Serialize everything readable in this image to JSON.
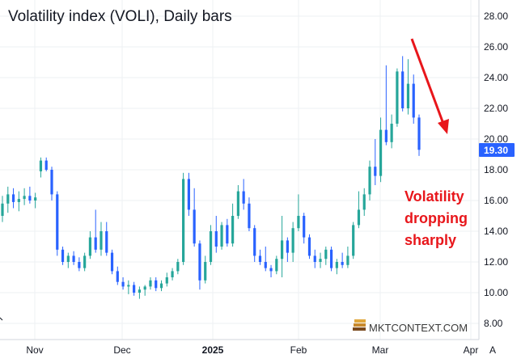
{
  "chart_data": {
    "type": "candlestick",
    "title": "Volatility index (VOLI), Daily bars",
    "y_axis": {
      "position": "right",
      "ylim": [
        7.0,
        29.0
      ],
      "ticks": [
        "28.00",
        "26.00",
        "24.00",
        "22.00",
        "20.00",
        "18.00",
        "16.00",
        "14.00",
        "12.00",
        "10.00",
        "8.00"
      ],
      "tick_values": [
        28,
        26,
        24,
        22,
        20,
        18,
        16,
        14,
        12,
        10,
        8
      ]
    },
    "x_axis": {
      "labels": [
        {
          "text": "Nov",
          "bold": false
        },
        {
          "text": "Dec",
          "bold": false
        },
        {
          "text": "2025",
          "bold": true
        },
        {
          "text": "Feb",
          "bold": false
        },
        {
          "text": "Mar",
          "bold": false
        },
        {
          "text": "Apr",
          "bold": false
        }
      ],
      "corner_label": "A"
    },
    "grid": true,
    "last_price": "19.30",
    "last_price_value": 19.3,
    "colors": {
      "up": "#26a69a",
      "down": "#2962ff",
      "arrow": "#e8161b",
      "last_price_bg": "#2962ff"
    },
    "candles": [
      [
        15.0,
        16.3,
        14.6,
        15.8
      ],
      [
        15.8,
        16.9,
        15.2,
        16.4
      ],
      [
        16.4,
        16.8,
        15.5,
        15.9
      ],
      [
        15.9,
        16.6,
        15.3,
        16.1
      ],
      [
        16.1,
        16.8,
        15.7,
        16.3
      ],
      [
        16.3,
        16.9,
        15.8,
        16.0
      ],
      [
        16.0,
        16.5,
        15.5,
        16.2
      ],
      [
        17.9,
        18.8,
        17.5,
        18.6
      ],
      [
        18.6,
        18.8,
        17.9,
        18.0
      ],
      [
        18.0,
        18.2,
        16.0,
        16.4
      ],
      [
        16.4,
        16.6,
        12.4,
        12.8
      ],
      [
        12.8,
        13.0,
        11.8,
        12.0
      ],
      [
        12.0,
        12.6,
        11.6,
        12.4
      ],
      [
        12.4,
        12.7,
        11.8,
        12.0
      ],
      [
        12.0,
        12.3,
        11.4,
        11.6
      ],
      [
        11.6,
        12.6,
        11.4,
        12.4
      ],
      [
        12.4,
        14.0,
        12.2,
        13.6
      ],
      [
        13.6,
        15.4,
        12.6,
        12.8
      ],
      [
        12.8,
        14.6,
        12.4,
        14.0
      ],
      [
        14.0,
        14.6,
        12.4,
        12.6
      ],
      [
        12.6,
        12.8,
        11.2,
        11.4
      ],
      [
        11.4,
        11.7,
        10.5,
        10.7
      ],
      [
        10.7,
        11.0,
        10.2,
        10.4
      ],
      [
        10.4,
        10.8,
        9.9,
        10.5
      ],
      [
        10.5,
        10.7,
        9.8,
        10.0
      ],
      [
        10.0,
        10.4,
        9.6,
        10.2
      ],
      [
        10.2,
        10.5,
        9.8,
        10.4
      ],
      [
        10.4,
        11.0,
        10.2,
        10.8
      ],
      [
        10.8,
        11.0,
        10.1,
        10.3
      ],
      [
        10.3,
        10.8,
        10.1,
        10.6
      ],
      [
        10.6,
        11.3,
        10.4,
        11.0
      ],
      [
        11.0,
        11.6,
        10.8,
        11.4
      ],
      [
        11.4,
        12.2,
        11.2,
        12.0
      ],
      [
        12.0,
        17.8,
        11.8,
        17.4
      ],
      [
        17.4,
        17.8,
        15.0,
        15.4
      ],
      [
        15.4,
        16.8,
        13.0,
        13.2
      ],
      [
        13.2,
        13.4,
        10.2,
        10.8
      ],
      [
        10.8,
        12.4,
        10.6,
        12.0
      ],
      [
        12.0,
        14.4,
        11.8,
        14.0
      ],
      [
        14.0,
        15.0,
        12.6,
        13.0
      ],
      [
        13.0,
        14.6,
        12.8,
        14.4
      ],
      [
        14.4,
        14.8,
        13.0,
        13.2
      ],
      [
        13.2,
        15.8,
        13.0,
        15.0
      ],
      [
        15.0,
        17.0,
        14.8,
        16.6
      ],
      [
        16.6,
        17.4,
        15.4,
        15.8
      ],
      [
        15.8,
        16.2,
        14.0,
        14.2
      ],
      [
        14.2,
        14.4,
        12.0,
        12.4
      ],
      [
        12.4,
        12.8,
        11.8,
        12.0
      ],
      [
        12.0,
        13.0,
        11.4,
        11.6
      ],
      [
        11.6,
        11.8,
        11.0,
        11.4
      ],
      [
        11.4,
        12.4,
        11.2,
        12.2
      ],
      [
        12.2,
        15.0,
        11.0,
        13.4
      ],
      [
        13.4,
        13.6,
        12.0,
        12.6
      ],
      [
        12.6,
        14.6,
        12.0,
        14.2
      ],
      [
        14.2,
        16.4,
        14.0,
        15.0
      ],
      [
        15.0,
        15.2,
        13.2,
        13.6
      ],
      [
        13.6,
        13.8,
        12.2,
        12.4
      ],
      [
        12.4,
        12.8,
        11.6,
        12.0
      ],
      [
        12.0,
        12.6,
        11.6,
        12.2
      ],
      [
        12.2,
        13.0,
        11.8,
        12.8
      ],
      [
        12.8,
        13.0,
        11.4,
        11.6
      ],
      [
        11.6,
        12.2,
        11.2,
        12.0
      ],
      [
        12.0,
        12.6,
        11.6,
        11.8
      ],
      [
        11.8,
        13.0,
        11.6,
        12.4
      ],
      [
        12.4,
        14.6,
        12.2,
        14.4
      ],
      [
        14.4,
        16.6,
        14.2,
        15.4
      ],
      [
        15.4,
        16.8,
        15.0,
        16.4
      ],
      [
        16.4,
        18.6,
        16.0,
        18.2
      ],
      [
        18.2,
        20.0,
        17.0,
        17.6
      ],
      [
        17.6,
        21.4,
        17.2,
        20.6
      ],
      [
        20.6,
        24.8,
        19.6,
        19.8
      ],
      [
        19.8,
        21.6,
        19.4,
        21.0
      ],
      [
        21.0,
        24.6,
        20.8,
        24.4
      ],
      [
        24.4,
        25.4,
        21.8,
        22.0
      ],
      [
        22.0,
        25.2,
        21.6,
        23.6
      ],
      [
        23.6,
        24.2,
        21.0,
        21.4
      ],
      [
        21.4,
        21.6,
        18.9,
        19.3
      ]
    ]
  },
  "annotation": {
    "lines": [
      "Volatility",
      "dropping",
      "sharply"
    ]
  },
  "logo": {
    "text": "MKTCONTEXT.COM"
  }
}
